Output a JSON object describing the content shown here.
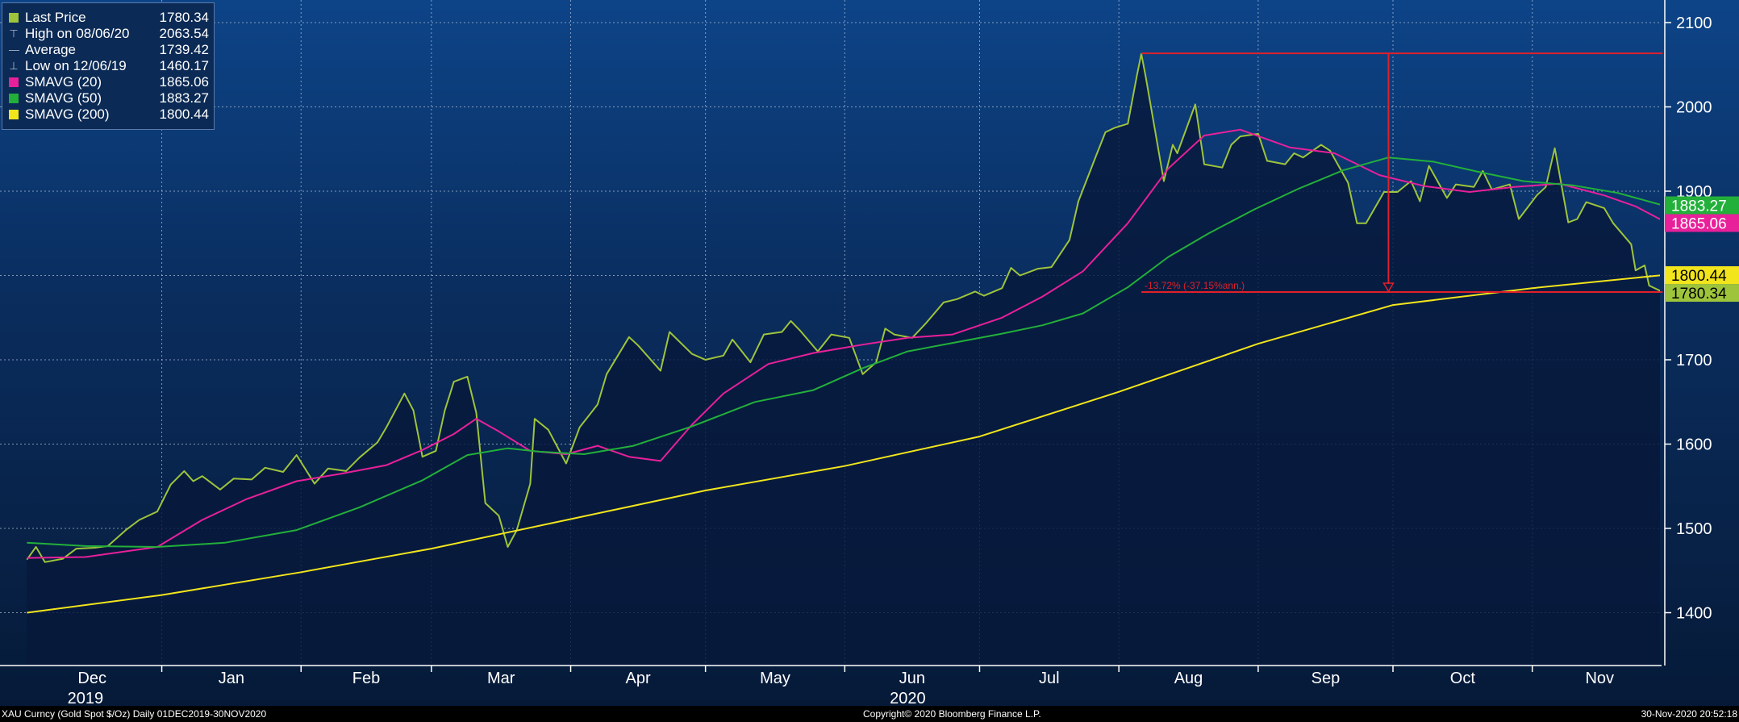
{
  "chart_data": {
    "type": "line",
    "x_range": [
      "2019-12-01",
      "2020-11-30"
    ],
    "ylim": [
      1340,
      2130
    ],
    "y_ticks": [
      1400,
      1500,
      1600,
      1700,
      1800,
      1900,
      2000,
      2100
    ],
    "x_month_labels": [
      "Dec",
      "Jan",
      "Feb",
      "Mar",
      "Apr",
      "May",
      "Jun",
      "Jul",
      "Aug",
      "Sep",
      "Oct",
      "Nov"
    ],
    "x_year_labels": [
      {
        "label": "2019",
        "date": "2019-12-15"
      },
      {
        "label": "2020",
        "date": "2020-06-15"
      }
    ],
    "grid": true,
    "legend_position": "top-left",
    "legend": [
      {
        "name": "Last Price",
        "value": "1780.34",
        "color": "#9ec43c",
        "marker": "square"
      },
      {
        "name": "High on 08/06/20",
        "value": "2063.54",
        "color": "#aab7cc",
        "marker": "high-glyph"
      },
      {
        "name": "Average",
        "value": "1739.42",
        "color": "#aab7cc",
        "marker": "avg-glyph"
      },
      {
        "name": "Low on 12/06/19",
        "value": "1460.17",
        "color": "#aab7cc",
        "marker": "low-glyph"
      },
      {
        "name": "SMAVG (20)",
        "value": "1865.06",
        "color": "#e8209a",
        "marker": "square"
      },
      {
        "name": "SMAVG (50)",
        "value": "1883.27",
        "color": "#22b03a",
        "marker": "square"
      },
      {
        "name": "SMAVG (200)",
        "value": "1800.44",
        "color": "#f2e51c",
        "marker": "square"
      }
    ],
    "series": [
      {
        "name": "Last Price",
        "color": "#9ec43c",
        "area": true,
        "points": [
          [
            "2019-12-02",
            1463
          ],
          [
            "2019-12-04",
            1478
          ],
          [
            "2019-12-06",
            1460
          ],
          [
            "2019-12-10",
            1464
          ],
          [
            "2019-12-13",
            1476
          ],
          [
            "2019-12-17",
            1477
          ],
          [
            "2019-12-20",
            1479
          ],
          [
            "2019-12-24",
            1498
          ],
          [
            "2019-12-27",
            1510
          ],
          [
            "2019-12-31",
            1520
          ],
          [
            "2020-01-03",
            1552
          ],
          [
            "2020-01-06",
            1568
          ],
          [
            "2020-01-08",
            1556
          ],
          [
            "2020-01-10",
            1562
          ],
          [
            "2020-01-14",
            1546
          ],
          [
            "2020-01-17",
            1559
          ],
          [
            "2020-01-21",
            1558
          ],
          [
            "2020-01-24",
            1572
          ],
          [
            "2020-01-28",
            1567
          ],
          [
            "2020-01-31",
            1587
          ],
          [
            "2020-02-04",
            1553
          ],
          [
            "2020-02-07",
            1571
          ],
          [
            "2020-02-11",
            1568
          ],
          [
            "2020-02-14",
            1584
          ],
          [
            "2020-02-18",
            1602
          ],
          [
            "2020-02-20",
            1620
          ],
          [
            "2020-02-24",
            1660
          ],
          [
            "2020-02-26",
            1640
          ],
          [
            "2020-02-28",
            1585
          ],
          [
            "2020-03-02",
            1592
          ],
          [
            "2020-03-04",
            1640
          ],
          [
            "2020-03-06",
            1674
          ],
          [
            "2020-03-09",
            1680
          ],
          [
            "2020-03-11",
            1637
          ],
          [
            "2020-03-13",
            1530
          ],
          [
            "2020-03-16",
            1515
          ],
          [
            "2020-03-18",
            1478
          ],
          [
            "2020-03-20",
            1498
          ],
          [
            "2020-03-23",
            1553
          ],
          [
            "2020-03-24",
            1630
          ],
          [
            "2020-03-27",
            1617
          ],
          [
            "2020-03-31",
            1577
          ],
          [
            "2020-04-03",
            1620
          ],
          [
            "2020-04-07",
            1647
          ],
          [
            "2020-04-09",
            1683
          ],
          [
            "2020-04-14",
            1727
          ],
          [
            "2020-04-16",
            1717
          ],
          [
            "2020-04-21",
            1687
          ],
          [
            "2020-04-23",
            1733
          ],
          [
            "2020-04-28",
            1707
          ],
          [
            "2020-05-01",
            1700
          ],
          [
            "2020-05-05",
            1705
          ],
          [
            "2020-05-07",
            1724
          ],
          [
            "2020-05-11",
            1697
          ],
          [
            "2020-05-14",
            1730
          ],
          [
            "2020-05-18",
            1733
          ],
          [
            "2020-05-20",
            1746
          ],
          [
            "2020-05-22",
            1735
          ],
          [
            "2020-05-26",
            1710
          ],
          [
            "2020-05-29",
            1730
          ],
          [
            "2020-06-02",
            1726
          ],
          [
            "2020-06-05",
            1683
          ],
          [
            "2020-06-08",
            1697
          ],
          [
            "2020-06-10",
            1737
          ],
          [
            "2020-06-12",
            1730
          ],
          [
            "2020-06-16",
            1726
          ],
          [
            "2020-06-19",
            1743
          ],
          [
            "2020-06-23",
            1768
          ],
          [
            "2020-06-26",
            1772
          ],
          [
            "2020-06-30",
            1781
          ],
          [
            "2020-07-02",
            1776
          ],
          [
            "2020-07-06",
            1785
          ],
          [
            "2020-07-08",
            1809
          ],
          [
            "2020-07-10",
            1800
          ],
          [
            "2020-07-14",
            1808
          ],
          [
            "2020-07-17",
            1810
          ],
          [
            "2020-07-21",
            1842
          ],
          [
            "2020-07-23",
            1888
          ],
          [
            "2020-07-27",
            1943
          ],
          [
            "2020-07-29",
            1970
          ],
          [
            "2020-07-31",
            1975
          ],
          [
            "2020-08-03",
            1980
          ],
          [
            "2020-08-05",
            2037
          ],
          [
            "2020-08-06",
            2063
          ],
          [
            "2020-08-07",
            2035
          ],
          [
            "2020-08-11",
            1912
          ],
          [
            "2020-08-13",
            1955
          ],
          [
            "2020-08-14",
            1945
          ],
          [
            "2020-08-18",
            2003
          ],
          [
            "2020-08-20",
            1932
          ],
          [
            "2020-08-24",
            1928
          ],
          [
            "2020-08-26",
            1955
          ],
          [
            "2020-08-28",
            1965
          ],
          [
            "2020-09-01",
            1968
          ],
          [
            "2020-09-03",
            1936
          ],
          [
            "2020-09-07",
            1932
          ],
          [
            "2020-09-09",
            1945
          ],
          [
            "2020-09-11",
            1940
          ],
          [
            "2020-09-15",
            1955
          ],
          [
            "2020-09-17",
            1948
          ],
          [
            "2020-09-21",
            1910
          ],
          [
            "2020-09-23",
            1862
          ],
          [
            "2020-09-25",
            1862
          ],
          [
            "2020-09-29",
            1899
          ],
          [
            "2020-10-02",
            1899
          ],
          [
            "2020-10-05",
            1912
          ],
          [
            "2020-10-07",
            1888
          ],
          [
            "2020-10-09",
            1930
          ],
          [
            "2020-10-13",
            1892
          ],
          [
            "2020-10-15",
            1908
          ],
          [
            "2020-10-19",
            1905
          ],
          [
            "2020-10-21",
            1924
          ],
          [
            "2020-10-23",
            1902
          ],
          [
            "2020-10-27",
            1908
          ],
          [
            "2020-10-29",
            1867
          ],
          [
            "2020-11-02",
            1895
          ],
          [
            "2020-11-04",
            1905
          ],
          [
            "2020-11-06",
            1951
          ],
          [
            "2020-11-09",
            1863
          ],
          [
            "2020-11-11",
            1867
          ],
          [
            "2020-11-13",
            1887
          ],
          [
            "2020-11-17",
            1880
          ],
          [
            "2020-11-19",
            1862
          ],
          [
            "2020-11-23",
            1837
          ],
          [
            "2020-11-24",
            1806
          ],
          [
            "2020-11-26",
            1812
          ],
          [
            "2020-11-27",
            1788
          ],
          [
            "2020-11-30",
            1780.34
          ]
        ]
      },
      {
        "name": "SMAVG (20)",
        "color": "#e8209a",
        "points": [
          [
            "2019-12-02",
            1465
          ],
          [
            "2019-12-15",
            1466
          ],
          [
            "2019-12-31",
            1478
          ],
          [
            "2020-01-10",
            1510
          ],
          [
            "2020-01-20",
            1535
          ],
          [
            "2020-01-31",
            1556
          ],
          [
            "2020-02-10",
            1565
          ],
          [
            "2020-02-20",
            1575
          ],
          [
            "2020-02-28",
            1593
          ],
          [
            "2020-03-06",
            1612
          ],
          [
            "2020-03-11",
            1630
          ],
          [
            "2020-03-16",
            1615
          ],
          [
            "2020-03-23",
            1592
          ],
          [
            "2020-03-31",
            1588
          ],
          [
            "2020-04-07",
            1598
          ],
          [
            "2020-04-14",
            1585
          ],
          [
            "2020-04-21",
            1580
          ],
          [
            "2020-04-28",
            1623
          ],
          [
            "2020-05-05",
            1660
          ],
          [
            "2020-05-15",
            1695
          ],
          [
            "2020-05-25",
            1708
          ],
          [
            "2020-06-05",
            1718
          ],
          [
            "2020-06-15",
            1726
          ],
          [
            "2020-06-25",
            1730
          ],
          [
            "2020-07-06",
            1750
          ],
          [
            "2020-07-15",
            1775
          ],
          [
            "2020-07-24",
            1805
          ],
          [
            "2020-08-03",
            1862
          ],
          [
            "2020-08-12",
            1927
          ],
          [
            "2020-08-20",
            1966
          ],
          [
            "2020-08-28",
            1973
          ],
          [
            "2020-09-08",
            1952
          ],
          [
            "2020-09-18",
            1945
          ],
          [
            "2020-09-28",
            1919
          ],
          [
            "2020-10-08",
            1906
          ],
          [
            "2020-10-18",
            1899
          ],
          [
            "2020-10-28",
            1905
          ],
          [
            "2020-11-07",
            1909
          ],
          [
            "2020-11-17",
            1895
          ],
          [
            "2020-11-24",
            1882
          ],
          [
            "2020-11-30",
            1865.06
          ]
        ]
      },
      {
        "name": "SMAVG (50)",
        "color": "#22b03a",
        "points": [
          [
            "2019-12-02",
            1483
          ],
          [
            "2019-12-15",
            1479
          ],
          [
            "2019-12-31",
            1478
          ],
          [
            "2020-01-15",
            1483
          ],
          [
            "2020-01-31",
            1498
          ],
          [
            "2020-02-14",
            1525
          ],
          [
            "2020-02-28",
            1557
          ],
          [
            "2020-03-09",
            1587
          ],
          [
            "2020-03-18",
            1595
          ],
          [
            "2020-03-25",
            1591
          ],
          [
            "2020-04-04",
            1588
          ],
          [
            "2020-04-15",
            1598
          ],
          [
            "2020-04-28",
            1621
          ],
          [
            "2020-05-12",
            1650
          ],
          [
            "2020-05-25",
            1664
          ],
          [
            "2020-06-05",
            1690
          ],
          [
            "2020-06-15",
            1710
          ],
          [
            "2020-06-25",
            1720
          ],
          [
            "2020-07-06",
            1731
          ],
          [
            "2020-07-15",
            1741
          ],
          [
            "2020-07-24",
            1755
          ],
          [
            "2020-08-03",
            1786
          ],
          [
            "2020-08-12",
            1822
          ],
          [
            "2020-08-21",
            1850
          ],
          [
            "2020-08-31",
            1878
          ],
          [
            "2020-09-10",
            1903
          ],
          [
            "2020-09-20",
            1925
          ],
          [
            "2020-09-30",
            1940
          ],
          [
            "2020-10-10",
            1935
          ],
          [
            "2020-10-20",
            1923
          ],
          [
            "2020-10-30",
            1912
          ],
          [
            "2020-11-10",
            1907
          ],
          [
            "2020-11-20",
            1898
          ],
          [
            "2020-11-30",
            1883.27
          ]
        ]
      },
      {
        "name": "SMAVG (200)",
        "color": "#f2e51c",
        "points": [
          [
            "2019-12-02",
            1400
          ],
          [
            "2020-01-01",
            1421
          ],
          [
            "2020-02-01",
            1448
          ],
          [
            "2020-03-01",
            1476
          ],
          [
            "2020-04-01",
            1511
          ],
          [
            "2020-05-01",
            1545
          ],
          [
            "2020-06-01",
            1574
          ],
          [
            "2020-07-01",
            1609
          ],
          [
            "2020-08-01",
            1662
          ],
          [
            "2020-09-01",
            1719
          ],
          [
            "2020-10-01",
            1765
          ],
          [
            "2020-11-01",
            1785
          ],
          [
            "2020-11-30",
            1800.44
          ]
        ]
      }
    ],
    "high_marker": {
      "date": "2020-08-06",
      "value": 2063.54
    },
    "drawdown_annotation": {
      "text": "-13.72% (-37.15%ann.)",
      "from_value": 2063.54,
      "to_value": 1780.34,
      "arrow_date": "2020-09-30"
    },
    "price_tags": [
      {
        "label": "1883.27",
        "value": 1883.27,
        "bg": "#22b03a",
        "fg": "#ffffff"
      },
      {
        "label": "1865.06",
        "value": 1865.06,
        "bg": "#e8209a",
        "fg": "#ffffff"
      },
      {
        "label": "1800.44",
        "value": 1800.44,
        "bg": "#f2e51c",
        "fg": "#000000"
      },
      {
        "label": "1780.34",
        "value": 1780.34,
        "bg": "#9ec43c",
        "fg": "#000000"
      }
    ]
  },
  "footer": {
    "left": "XAU Curncy (Gold Spot   $/Oz)  Daily 01DEC2019-30NOV2020",
    "center": "Copyright© 2020 Bloomberg Finance L.P.",
    "right": "30-Nov-2020 20:52:18"
  }
}
